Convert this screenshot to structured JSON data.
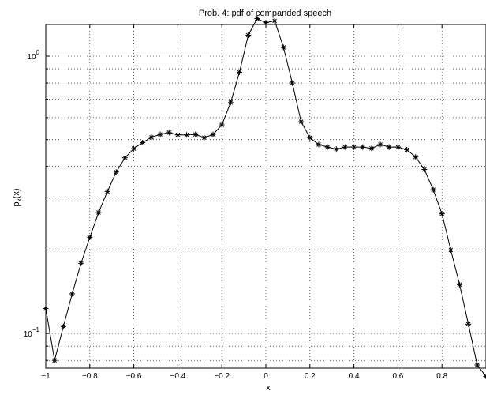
{
  "chart_data": {
    "type": "line",
    "title": "Prob. 4: pdf of companded speech",
    "xlabel": "x",
    "ylabel": "p",
    "ylabel_subscript": "x",
    "ylabel_suffix": "(x)",
    "yscale": "log",
    "xlim": [
      -1,
      1
    ],
    "ylim": [
      0.075,
      1.3
    ],
    "grid": true,
    "marker": "*",
    "xticks": [
      -1,
      -0.8,
      -0.6,
      -0.4,
      -0.2,
      0,
      0.2,
      0.4,
      0.6,
      0.8
    ],
    "xticklabels": [
      "−1",
      "−0.8",
      "−0.6",
      "−0.4",
      "−0.2",
      "0",
      "0.2",
      "0.4",
      "0.6",
      "0.8"
    ],
    "ytick_major": [
      {
        "value": 0.1,
        "base": "10",
        "exp": "−1"
      },
      {
        "value": 1,
        "base": "10",
        "exp": "0"
      }
    ],
    "series": [
      {
        "x": [
          -1.0,
          -0.96,
          -0.92,
          -0.88,
          -0.84,
          -0.8,
          -0.76,
          -0.72,
          -0.68,
          -0.64,
          -0.6,
          -0.56,
          -0.52,
          -0.48,
          -0.44,
          -0.4,
          -0.36,
          -0.32,
          -0.28,
          -0.24,
          -0.2,
          -0.16,
          -0.12,
          -0.08,
          -0.04,
          0.0,
          0.04,
          0.08,
          0.12,
          0.16,
          0.2,
          0.24,
          0.28,
          0.32,
          0.36,
          0.4,
          0.44,
          0.48,
          0.52,
          0.56,
          0.6,
          0.64,
          0.68,
          0.72,
          0.76,
          0.8,
          0.84,
          0.88,
          0.92,
          0.96,
          1.0
        ],
        "y": [
          0.123,
          0.08,
          0.106,
          0.139,
          0.179,
          0.222,
          0.273,
          0.325,
          0.382,
          0.43,
          0.464,
          0.488,
          0.51,
          0.522,
          0.53,
          0.52,
          0.52,
          0.522,
          0.508,
          0.522,
          0.565,
          0.68,
          0.875,
          1.19,
          1.365,
          1.32,
          1.34,
          1.075,
          0.8,
          0.58,
          0.508,
          0.48,
          0.47,
          0.462,
          0.47,
          0.47,
          0.47,
          0.465,
          0.48,
          0.47,
          0.47,
          0.46,
          0.433,
          0.39,
          0.33,
          0.27,
          0.2,
          0.15,
          0.108,
          0.077,
          0.07
        ]
      }
    ]
  }
}
